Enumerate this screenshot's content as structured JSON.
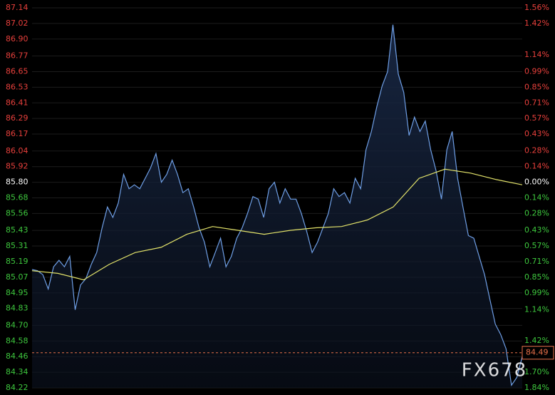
{
  "chart_data": {
    "type": "line",
    "ylim": [
      84.22,
      87.14
    ],
    "yticks": [
      87.14,
      87.02,
      {
        "value": 86.9,
        "label": "86.90"
      },
      86.77,
      86.65,
      86.53,
      86.41,
      86.29,
      86.17,
      86.04,
      85.92,
      {
        "value": 85.8,
        "label": "85.80"
      },
      85.68,
      85.56,
      85.43,
      85.31,
      85.19,
      85.07,
      84.95,
      84.83,
      {
        "value": 84.7,
        "label": "84.70"
      },
      84.58,
      84.46,
      84.34,
      84.22
    ],
    "y2lim": [
      -1.84,
      1.56
    ],
    "y2ticks": [
      {
        "value": 1.56,
        "label": "1.56%"
      },
      {
        "value": 1.42,
        "label": "1.42%"
      },
      {
        "value": 1.14,
        "label": "1.14%"
      },
      {
        "value": 0.99,
        "label": "0.99%"
      },
      {
        "value": 0.85,
        "label": "0.85%"
      },
      {
        "value": 0.71,
        "label": "0.71%"
      },
      {
        "value": 0.57,
        "label": "0.57%"
      },
      {
        "value": 0.43,
        "label": "0.43%"
      },
      {
        "value": 0.28,
        "label": "0.28%"
      },
      {
        "value": 0.14,
        "label": "0.14%"
      },
      {
        "value": 0,
        "label": "0.00%"
      },
      {
        "value": -0.14,
        "label": "0.14%"
      },
      {
        "value": -0.28,
        "label": "0.28%"
      },
      {
        "value": -0.43,
        "label": "0.43%"
      },
      {
        "value": -0.57,
        "label": "0.57%"
      },
      {
        "value": -0.71,
        "label": "0.71%"
      },
      {
        "value": -0.85,
        "label": "0.85%"
      },
      {
        "value": -0.99,
        "label": "0.99%"
      },
      {
        "value": -1.14,
        "label": "1.14%"
      },
      {
        "value": -1.42,
        "label": "1.42%"
      },
      {
        "value": -1.7,
        "label": "1.70%"
      },
      {
        "value": -1.84,
        "label": "1.84%"
      }
    ],
    "reference": 85.8,
    "grid": true,
    "series": [
      {
        "color": "#6f9fe6",
        "fill": true,
        "values": [
          85.13,
          85.12,
          85.09,
          84.98,
          85.15,
          85.2,
          85.15,
          85.23,
          84.82,
          85.01,
          85.06,
          85.17,
          85.26,
          85.45,
          85.61,
          85.53,
          85.64,
          85.86,
          85.75,
          85.78,
          85.75,
          85.83,
          85.91,
          86.02,
          85.8,
          85.86,
          85.97,
          85.86,
          85.72,
          85.75,
          85.61,
          85.45,
          85.34,
          85.15,
          85.26,
          85.37,
          85.15,
          85.23,
          85.37,
          85.45,
          85.56,
          85.69,
          85.67,
          85.53,
          85.75,
          85.8,
          85.64,
          85.75,
          85.67,
          85.67,
          85.56,
          85.42,
          85.26,
          85.34,
          85.45,
          85.56,
          85.75,
          85.69,
          85.72,
          85.64,
          85.83,
          85.75,
          86.05,
          86.19,
          86.38,
          86.54,
          86.65,
          87.01,
          86.63,
          86.49,
          86.16,
          86.3,
          86.19,
          86.27,
          86.05,
          85.89,
          85.67,
          86.05,
          86.19,
          85.83,
          85.61,
          85.39,
          85.37,
          85.23,
          85.09,
          84.9,
          84.71,
          84.63,
          84.52,
          84.24,
          84.3,
          84.46
        ]
      },
      {
        "color": "#e3e36a",
        "fill": false,
        "values": [
          85.12,
          85.1,
          85.05,
          85.17,
          85.26,
          85.3,
          85.4,
          85.46,
          85.43,
          85.4,
          85.43,
          85.45,
          85.46,
          85.51,
          85.61,
          85.83,
          85.9,
          85.87,
          85.82,
          85.78
        ]
      }
    ],
    "last_price": 84.49,
    "watermark": "FX678"
  }
}
